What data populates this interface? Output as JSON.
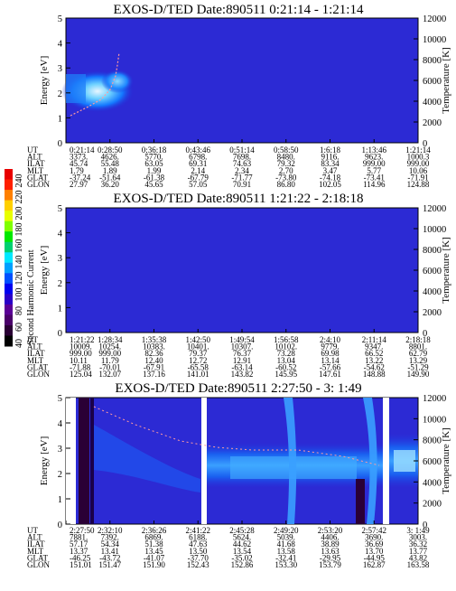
{
  "colorbar": {
    "label": "Second Harmonic Current",
    "ticks": [
      "40",
      "60",
      "80",
      "100",
      "120",
      "140",
      "160",
      "180",
      "200",
      "220",
      "240"
    ],
    "colors": [
      "#000000",
      "#2a0034",
      "#4a006a",
      "#5a0096",
      "#2a00c8",
      "#0000f0",
      "#0050ff",
      "#00a0ff",
      "#00e8ff",
      "#00d070",
      "#00e800",
      "#80ff00",
      "#e8ff00",
      "#ffd000",
      "#ff8000",
      "#ff2000",
      "#e80000"
    ]
  },
  "chart_data": [
    {
      "type": "heatmap",
      "title": "EXOS-D/TED   Date:890511   0:21:14 - 1:21:14",
      "ylabel": "Energy [eV]",
      "ylabel_right": "Temperature [K]",
      "ylim": [
        0,
        5
      ],
      "ylim_right": [
        0,
        12000
      ],
      "yticks": [
        "0",
        "1",
        "2",
        "3",
        "4",
        "5"
      ],
      "yticks_right": [
        "0",
        "2000",
        "4000",
        "6000",
        "8000",
        "10000",
        "12000"
      ],
      "table": {
        "labels": [
          "UT",
          "ALT",
          "ILAT",
          "MLT",
          "GLAT",
          "GLON"
        ],
        "columns": [
          [
            "0:21:14",
            "3373.",
            "45.74",
            "1.79",
            "-37.24",
            "27.97"
          ],
          [
            "0:28:50",
            "4626.",
            "55.48",
            "1.89",
            "-51.64",
            "36.20"
          ],
          [
            "0:36:18",
            "5770.",
            "63.05",
            "1.99",
            "-61.38",
            "45.65"
          ],
          [
            "0:43:46",
            "6798.",
            "69.31",
            "2.14",
            "-67.79",
            "57.05"
          ],
          [
            "0:51:14",
            "7698.",
            "74.63",
            "2.34",
            "-71.77",
            "70.91"
          ],
          [
            "0:58:50",
            "8480.",
            "79.32",
            "2.70",
            "-73.80",
            "86.80"
          ],
          [
            "1:6:18",
            "9116.",
            "83.34",
            "3.47",
            "-74.18",
            "102.05"
          ],
          [
            "1:13:46",
            "9623.",
            "999.00",
            "5.77",
            "-73.41",
            "114.96"
          ],
          [
            "1:21:14",
            "1000.3",
            "999.00",
            "10.06",
            "-71.91",
            "124.88"
          ]
        ]
      }
    },
    {
      "type": "heatmap",
      "title": "EXOS-D/TED   Date:890511   1:21:22 - 2:18:18",
      "ylabel": "Energy [eV]",
      "ylabel_right": "Temperature [K]",
      "ylim": [
        0,
        5
      ],
      "ylim_right": [
        0,
        12000
      ],
      "yticks": [
        "0",
        "1",
        "2",
        "3",
        "4",
        "5"
      ],
      "yticks_right": [
        "0",
        "2000",
        "4000",
        "6000",
        "8000",
        "10000",
        "12000"
      ],
      "table": {
        "labels": [
          "UT",
          "ALT",
          "ILAT",
          "MLT",
          "GLAT",
          "GLON"
        ],
        "columns": [
          [
            "1:21:22",
            "10009.",
            "999.00",
            "10.11",
            "-71.88",
            "125.04"
          ],
          [
            "1:28:34",
            "10254.",
            "999.00",
            "11.79",
            "-70.01",
            "132.07"
          ],
          [
            "1:35:38",
            "10383.",
            "82.36",
            "12.40",
            "-67.91",
            "137.16"
          ],
          [
            "1:42:50",
            "10401.",
            "79.37",
            "12.72",
            "-65.58",
            "141.01"
          ],
          [
            "1:49:54",
            "10307.",
            "76.37",
            "12.91",
            "-63.14",
            "143.82"
          ],
          [
            "1:56:58",
            "10102.",
            "73.28",
            "13.04",
            "-60.52",
            "145.95"
          ],
          [
            "2:4:10",
            "9779.",
            "69.98",
            "13.14",
            "-57.66",
            "147.61"
          ],
          [
            "2:11:14",
            "9347.",
            "66.52",
            "13.22",
            "-54.62",
            "148.88"
          ],
          [
            "2:18:18",
            "8801.",
            "62.79",
            "13.29",
            "-51.29",
            "149.90"
          ]
        ]
      }
    },
    {
      "type": "heatmap",
      "title": "EXOS-D/TED   Date:890511   2:27:50 - 3: 1:49",
      "ylabel": "Energy [eV]",
      "ylabel_right": "Temperature [K]",
      "ylim": [
        0,
        5
      ],
      "ylim_right": [
        0,
        12000
      ],
      "yticks": [
        "0",
        "1",
        "2",
        "3",
        "4",
        "5"
      ],
      "yticks_right": [
        "0",
        "2000",
        "4000",
        "6000",
        "8000",
        "10000",
        "12000"
      ],
      "table": {
        "labels": [
          "UT",
          "ALT",
          "ILAT",
          "MLT",
          "GLAT",
          "GLON"
        ],
        "columns": [
          [
            "2:27:50",
            "7881.",
            "57.17",
            "13.37",
            "-46.25",
            "151.01"
          ],
          [
            "2:32:10",
            "7392.",
            "54.34",
            "13.41",
            "-43.72",
            "151.47"
          ],
          [
            "2:36:26",
            "6869.",
            "51.38",
            "13.45",
            "-41.07",
            "151.90"
          ],
          [
            "2:41:22",
            "6188.",
            "47.63",
            "13.50",
            "-37.70",
            "152.43"
          ],
          [
            "2:45:28",
            "5624.",
            "44.62",
            "13.54",
            "-35.02",
            "152.86"
          ],
          [
            "2:49:20",
            "5039.",
            "41.68",
            "13.58",
            "-32.41",
            "153.30"
          ],
          [
            "2:53:20",
            "4406.",
            "38.89",
            "13.63",
            "-29.95",
            "153.79"
          ],
          [
            "2:57:42",
            "3690.",
            "36.69",
            "13.70",
            "-44.95",
            "162.87"
          ],
          [
            "3: 1:49",
            "3003.",
            "36.32",
            "13.77",
            "43.82",
            "163.58"
          ]
        ]
      }
    }
  ]
}
